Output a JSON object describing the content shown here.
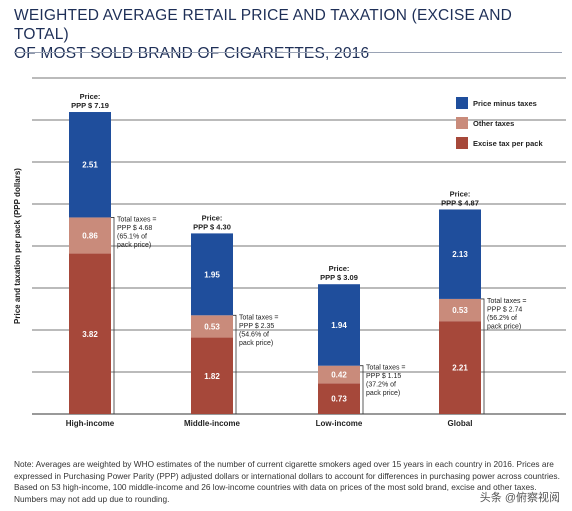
{
  "title_line1": "WEIGHTED AVERAGE RETAIL PRICE AND TAXATION (EXCISE AND TOTAL)",
  "title_line2": "OF MOST SOLD BRAND OF CIGARETTES, 2016",
  "note": "Note: Averages are weighted by WHO estimates of the number of current cigarette smokers aged over 15 years in each country in 2016. Prices are expressed in Purchasing Power Parity (PPP) adjusted dollars or international dollars to account for differences in purchasing power across countries. Based on 53 high-income, 100 middle-income and 26 low-income countries with data on prices of the most sold brand, excise and other taxes. Numbers may not add up due to rounding.",
  "watermark": "头条 @俯察视阅",
  "colors": {
    "price_minus_taxes": "#1f4e9c",
    "other_taxes": "#c98b7b",
    "excise_tax": "#a6483a"
  },
  "chart_data": {
    "type": "bar",
    "stacked": true,
    "ylabel": "Price and taxation per pack (PPP dollars)",
    "ylim": [
      0,
      8
    ],
    "grid": true,
    "legend_position": "top-right",
    "categories": [
      "High-income",
      "Middle-income",
      "Low-income",
      "Global"
    ],
    "series": [
      {
        "name": "Excise tax per pack",
        "values": [
          3.82,
          1.82,
          0.73,
          2.21
        ],
        "labels": [
          "3.82",
          "1.82",
          "0.73",
          "2.21"
        ]
      },
      {
        "name": "Other taxes",
        "values": [
          0.86,
          0.53,
          0.42,
          0.53
        ],
        "labels": [
          "0.86",
          "0.53",
          "0.42",
          "0.53"
        ]
      },
      {
        "name": "Price minus taxes",
        "values": [
          2.51,
          1.95,
          1.94,
          2.13
        ],
        "labels": [
          "2.51",
          "1.95",
          "1.94",
          "2.13"
        ]
      }
    ],
    "legend_order": [
      "Price minus taxes",
      "Other taxes",
      "Excise tax per pack"
    ],
    "totals": [
      7.19,
      4.3,
      3.09,
      4.87
    ],
    "price_labels": [
      [
        "Price:",
        "PPP $ 7.19"
      ],
      [
        "Price:",
        "PPP $ 4.30"
      ],
      [
        "Price:",
        "PPP $ 3.09"
      ],
      [
        "Price:",
        "PPP $ 4.87"
      ]
    ],
    "total_tax_labels": [
      [
        "Total taxes =",
        "PPP $ 4.68",
        "(65.1% of",
        "pack price)"
      ],
      [
        "Total taxes =",
        "PPP $ 2.35",
        "(54.6% of",
        "pack price)"
      ],
      [
        "Total taxes =",
        "PPP $ 1.15",
        "(37.2% of",
        "pack price)"
      ],
      [
        "Total taxes =",
        "PPP $ 2.74",
        "(56.2% of",
        "pack price)"
      ]
    ]
  }
}
